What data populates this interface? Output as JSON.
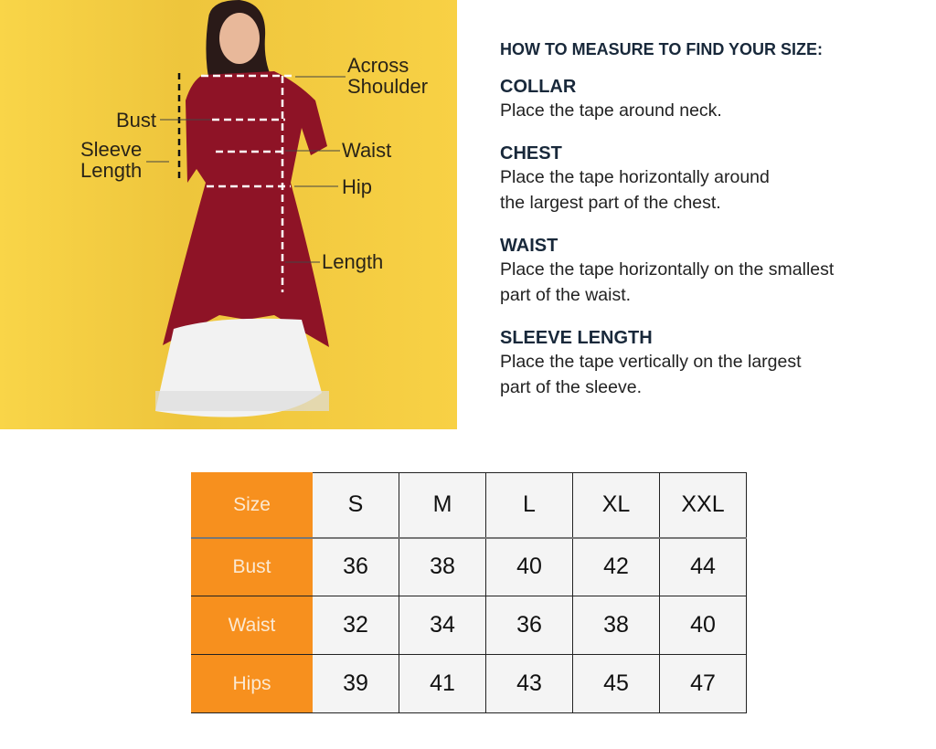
{
  "figure": {
    "labels": {
      "across_shoulder": [
        "Across",
        "Shoulder"
      ],
      "bust": "Bust",
      "sleeve_length": [
        "Sleeve",
        "Length"
      ],
      "waist": "Waist",
      "hip": "Hip",
      "length": "Length"
    },
    "colors": {
      "background": "#f8d145",
      "kurta": "#8e1326",
      "skirt": "#f2f2f2"
    }
  },
  "guide": {
    "heading": "HOW TO MEASURE TO FIND YOUR SIZE:",
    "sections": [
      {
        "title": "COLLAR",
        "lines": [
          "Place the tape around neck."
        ]
      },
      {
        "title": "CHEST",
        "lines": [
          "Place the tape horizontally around",
          "the largest part of the chest."
        ]
      },
      {
        "title": "WAIST",
        "lines": [
          "Place the tape horizontally on the smallest",
          "part of the waist."
        ]
      },
      {
        "title": "SLEEVE LENGTH",
        "lines": [
          "Place the tape vertically on the largest",
          "part of the sleeve."
        ]
      }
    ]
  },
  "size_table": {
    "header_label": "Size",
    "sizes": [
      "S",
      "M",
      "L",
      "XL",
      "XXL"
    ],
    "rows": [
      {
        "label": "Bust",
        "values": [
          "36",
          "38",
          "40",
          "42",
          "44"
        ]
      },
      {
        "label": "Waist",
        "values": [
          "32",
          "34",
          "36",
          "38",
          "40"
        ]
      },
      {
        "label": "Hips",
        "values": [
          "39",
          "41",
          "43",
          "45",
          "47"
        ]
      }
    ],
    "accent_color": "#f7901e"
  }
}
